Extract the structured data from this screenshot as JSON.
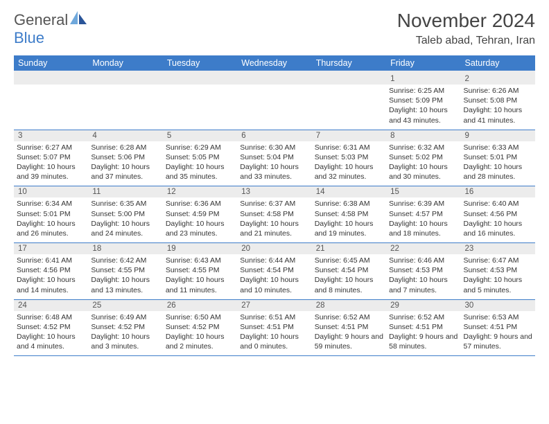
{
  "logo": {
    "text1": "General",
    "text2": "Blue"
  },
  "title": "November 2024",
  "location": "Taleb abad, Tehran, Iran",
  "colors": {
    "header_bg": "#3d7cc9",
    "header_text": "#ffffff",
    "daynum_bg": "#ececec",
    "border": "#3d7cc9",
    "body_text": "#333333",
    "title_text": "#444444"
  },
  "day_labels": [
    "Sunday",
    "Monday",
    "Tuesday",
    "Wednesday",
    "Thursday",
    "Friday",
    "Saturday"
  ],
  "weeks": [
    [
      {
        "n": "",
        "lines": []
      },
      {
        "n": "",
        "lines": []
      },
      {
        "n": "",
        "lines": []
      },
      {
        "n": "",
        "lines": []
      },
      {
        "n": "",
        "lines": []
      },
      {
        "n": "1",
        "lines": [
          "Sunrise: 6:25 AM",
          "Sunset: 5:09 PM",
          "Daylight: 10 hours and 43 minutes."
        ]
      },
      {
        "n": "2",
        "lines": [
          "Sunrise: 6:26 AM",
          "Sunset: 5:08 PM",
          "Daylight: 10 hours and 41 minutes."
        ]
      }
    ],
    [
      {
        "n": "3",
        "lines": [
          "Sunrise: 6:27 AM",
          "Sunset: 5:07 PM",
          "Daylight: 10 hours and 39 minutes."
        ]
      },
      {
        "n": "4",
        "lines": [
          "Sunrise: 6:28 AM",
          "Sunset: 5:06 PM",
          "Daylight: 10 hours and 37 minutes."
        ]
      },
      {
        "n": "5",
        "lines": [
          "Sunrise: 6:29 AM",
          "Sunset: 5:05 PM",
          "Daylight: 10 hours and 35 minutes."
        ]
      },
      {
        "n": "6",
        "lines": [
          "Sunrise: 6:30 AM",
          "Sunset: 5:04 PM",
          "Daylight: 10 hours and 33 minutes."
        ]
      },
      {
        "n": "7",
        "lines": [
          "Sunrise: 6:31 AM",
          "Sunset: 5:03 PM",
          "Daylight: 10 hours and 32 minutes."
        ]
      },
      {
        "n": "8",
        "lines": [
          "Sunrise: 6:32 AM",
          "Sunset: 5:02 PM",
          "Daylight: 10 hours and 30 minutes."
        ]
      },
      {
        "n": "9",
        "lines": [
          "Sunrise: 6:33 AM",
          "Sunset: 5:01 PM",
          "Daylight: 10 hours and 28 minutes."
        ]
      }
    ],
    [
      {
        "n": "10",
        "lines": [
          "Sunrise: 6:34 AM",
          "Sunset: 5:01 PM",
          "Daylight: 10 hours and 26 minutes."
        ]
      },
      {
        "n": "11",
        "lines": [
          "Sunrise: 6:35 AM",
          "Sunset: 5:00 PM",
          "Daylight: 10 hours and 24 minutes."
        ]
      },
      {
        "n": "12",
        "lines": [
          "Sunrise: 6:36 AM",
          "Sunset: 4:59 PM",
          "Daylight: 10 hours and 23 minutes."
        ]
      },
      {
        "n": "13",
        "lines": [
          "Sunrise: 6:37 AM",
          "Sunset: 4:58 PM",
          "Daylight: 10 hours and 21 minutes."
        ]
      },
      {
        "n": "14",
        "lines": [
          "Sunrise: 6:38 AM",
          "Sunset: 4:58 PM",
          "Daylight: 10 hours and 19 minutes."
        ]
      },
      {
        "n": "15",
        "lines": [
          "Sunrise: 6:39 AM",
          "Sunset: 4:57 PM",
          "Daylight: 10 hours and 18 minutes."
        ]
      },
      {
        "n": "16",
        "lines": [
          "Sunrise: 6:40 AM",
          "Sunset: 4:56 PM",
          "Daylight: 10 hours and 16 minutes."
        ]
      }
    ],
    [
      {
        "n": "17",
        "lines": [
          "Sunrise: 6:41 AM",
          "Sunset: 4:56 PM",
          "Daylight: 10 hours and 14 minutes."
        ]
      },
      {
        "n": "18",
        "lines": [
          "Sunrise: 6:42 AM",
          "Sunset: 4:55 PM",
          "Daylight: 10 hours and 13 minutes."
        ]
      },
      {
        "n": "19",
        "lines": [
          "Sunrise: 6:43 AM",
          "Sunset: 4:55 PM",
          "Daylight: 10 hours and 11 minutes."
        ]
      },
      {
        "n": "20",
        "lines": [
          "Sunrise: 6:44 AM",
          "Sunset: 4:54 PM",
          "Daylight: 10 hours and 10 minutes."
        ]
      },
      {
        "n": "21",
        "lines": [
          "Sunrise: 6:45 AM",
          "Sunset: 4:54 PM",
          "Daylight: 10 hours and 8 minutes."
        ]
      },
      {
        "n": "22",
        "lines": [
          "Sunrise: 6:46 AM",
          "Sunset: 4:53 PM",
          "Daylight: 10 hours and 7 minutes."
        ]
      },
      {
        "n": "23",
        "lines": [
          "Sunrise: 6:47 AM",
          "Sunset: 4:53 PM",
          "Daylight: 10 hours and 5 minutes."
        ]
      }
    ],
    [
      {
        "n": "24",
        "lines": [
          "Sunrise: 6:48 AM",
          "Sunset: 4:52 PM",
          "Daylight: 10 hours and 4 minutes."
        ]
      },
      {
        "n": "25",
        "lines": [
          "Sunrise: 6:49 AM",
          "Sunset: 4:52 PM",
          "Daylight: 10 hours and 3 minutes."
        ]
      },
      {
        "n": "26",
        "lines": [
          "Sunrise: 6:50 AM",
          "Sunset: 4:52 PM",
          "Daylight: 10 hours and 2 minutes."
        ]
      },
      {
        "n": "27",
        "lines": [
          "Sunrise: 6:51 AM",
          "Sunset: 4:51 PM",
          "Daylight: 10 hours and 0 minutes."
        ]
      },
      {
        "n": "28",
        "lines": [
          "Sunrise: 6:52 AM",
          "Sunset: 4:51 PM",
          "Daylight: 9 hours and 59 minutes."
        ]
      },
      {
        "n": "29",
        "lines": [
          "Sunrise: 6:52 AM",
          "Sunset: 4:51 PM",
          "Daylight: 9 hours and 58 minutes."
        ]
      },
      {
        "n": "30",
        "lines": [
          "Sunrise: 6:53 AM",
          "Sunset: 4:51 PM",
          "Daylight: 9 hours and 57 minutes."
        ]
      }
    ]
  ]
}
